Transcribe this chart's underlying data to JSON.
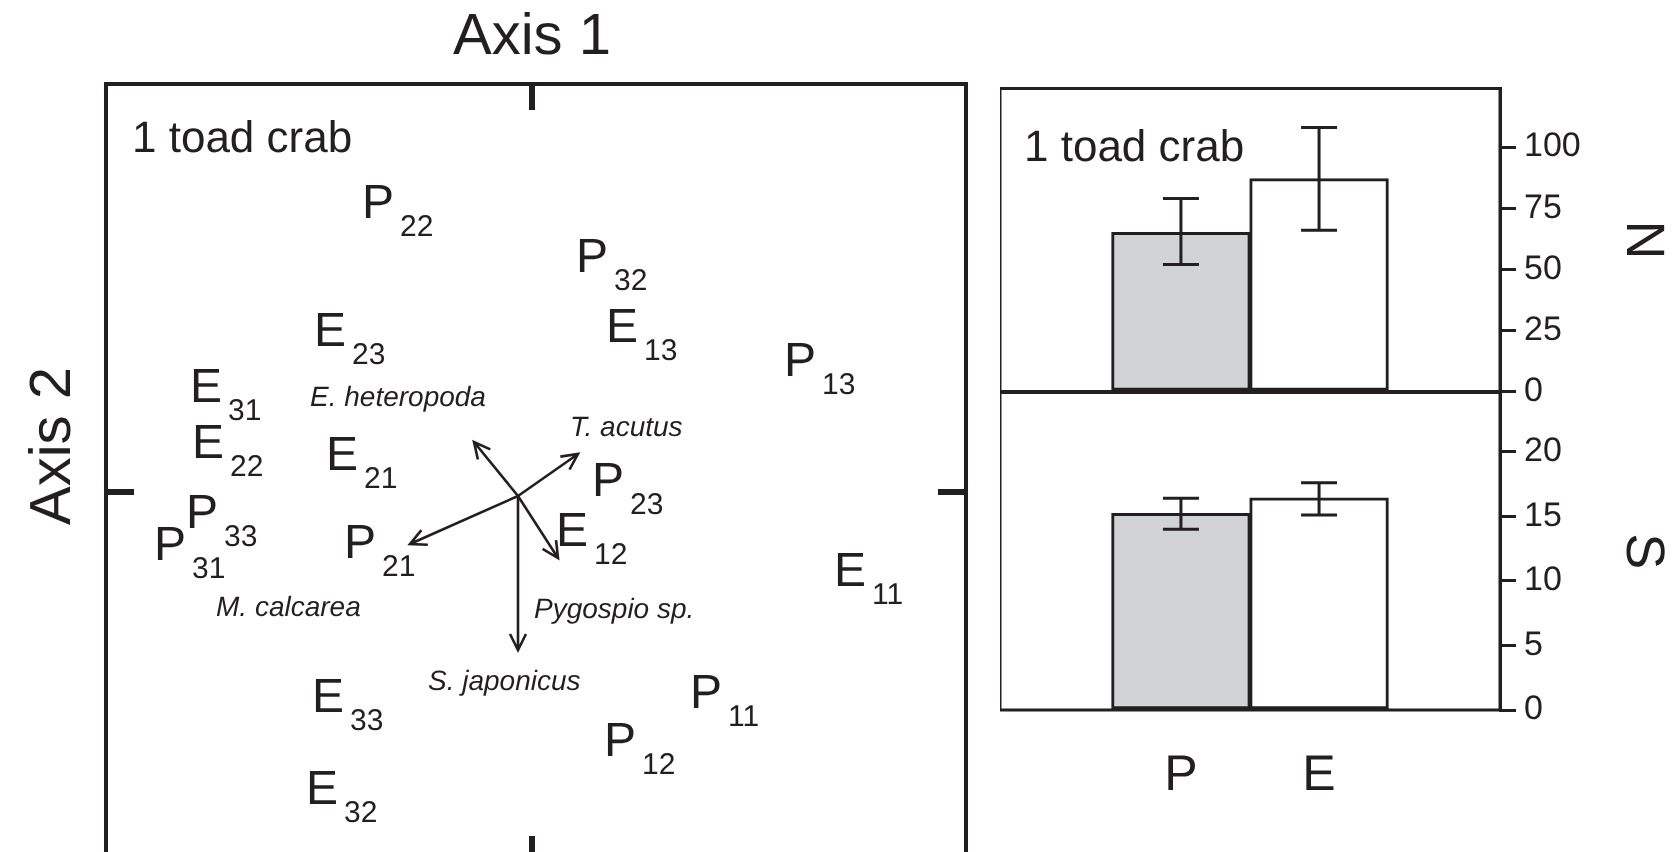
{
  "chart_data": [
    {
      "type": "other",
      "xlabel": "Axis 1",
      "ylabel": "Axis 2",
      "annotations": [
        "1 toad crab",
        "P$_{22}$",
        "P$_{32}$",
        "E$_{23}$",
        "E$_{13}$",
        "P$_{13}$",
        "E$_{31}$",
        "E$_{22}$",
        "E$_{21}$",
        "P$_{23}$",
        "P$_{33}$",
        "P$_{31}$",
        "P$_{21}$",
        "E$_{12}$",
        "E$_{11}$",
        "P$_{11}$",
        "P$_{12}$",
        "E$_{33}$",
        "E$_{32}$",
        "E. heteropoda",
        "T. acutus",
        "M. calcarea",
        "Pygospio  sp.",
        "S. japonicus"
      ]
    },
    {
      "type": "bar",
      "categories": [
        null,
        null
      ],
      "values": [
        65,
        87
      ],
      "colors": [
        "#d1d3d4",
        "#ffffff"
      ],
      "errors": [
        [
          52,
          79
        ],
        [
          66,
          108
        ]
      ],
      "ylabel": "N",
      "ylim": [
        0,
        124
      ],
      "yticks": [
        0,
        25,
        50,
        75,
        100
      ],
      "tick_labels": "y",
      "annotations": [
        "1 toad crab"
      ]
    },
    {
      "type": "bar",
      "categories": [
        "P",
        "E"
      ],
      "values": [
        15.2,
        16.4
      ],
      "colors": [
        "#d1d3d4",
        "#ffffff"
      ],
      "errors": [
        [
          14.0,
          16.4
        ],
        [
          15.1,
          17.6
        ]
      ],
      "ylabel": "S",
      "ylim": [
        0,
        24.6
      ],
      "yticks": [
        0,
        5,
        10,
        15,
        20
      ]
    }
  ]
}
